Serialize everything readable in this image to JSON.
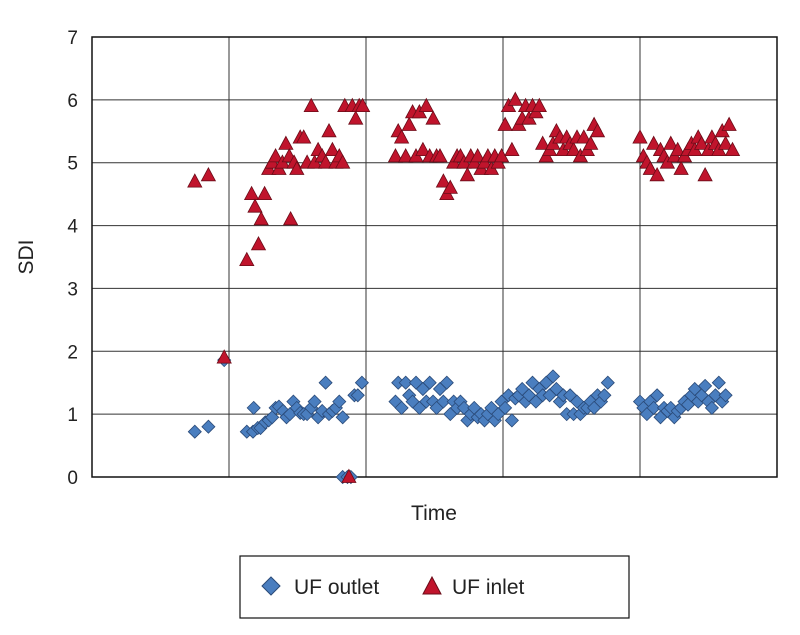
{
  "chart_data": {
    "type": "scatter",
    "xlabel": "Time",
    "ylabel": "SDI",
    "xlim": [
      0,
      100
    ],
    "ylim": [
      0,
      7
    ],
    "yticks": [
      "0",
      "1",
      "2",
      "3",
      "4",
      "5",
      "6",
      "7"
    ],
    "x_gridlines": [
      20,
      40,
      60,
      80
    ],
    "grid": true,
    "legend_position": "bottom",
    "series": [
      {
        "name": "UF outlet",
        "marker": "diamond",
        "color": "#4a7ebf",
        "points": [
          [
            15.0,
            0.72
          ],
          [
            17.0,
            0.8
          ],
          [
            19.3,
            1.86
          ],
          [
            22.6,
            0.72
          ],
          [
            23.5,
            0.72
          ],
          [
            23.6,
            1.1
          ],
          [
            24.2,
            0.78
          ],
          [
            24.6,
            0.78
          ],
          [
            25.3,
            0.87
          ],
          [
            25.8,
            0.9
          ],
          [
            26.3,
            0.95
          ],
          [
            26.8,
            1.1
          ],
          [
            27.3,
            1.12
          ],
          [
            27.9,
            1.05
          ],
          [
            28.4,
            0.95
          ],
          [
            28.9,
            1.0
          ],
          [
            29.4,
            1.2
          ],
          [
            29.9,
            1.1
          ],
          [
            30.4,
            1.02
          ],
          [
            30.9,
            1.0
          ],
          [
            31.4,
            1.0
          ],
          [
            32.0,
            1.1
          ],
          [
            32.5,
            1.2
          ],
          [
            33.0,
            0.95
          ],
          [
            33.6,
            1.05
          ],
          [
            34.1,
            1.5
          ],
          [
            34.6,
            1.0
          ],
          [
            35.1,
            1.05
          ],
          [
            35.6,
            1.1
          ],
          [
            36.1,
            1.2
          ],
          [
            36.6,
            0.95
          ],
          [
            36.6,
            0.0
          ],
          [
            37.3,
            0.0
          ],
          [
            37.8,
            0.0
          ],
          [
            38.3,
            1.3
          ],
          [
            38.8,
            1.3
          ],
          [
            39.4,
            1.5
          ],
          [
            44.3,
            1.2
          ],
          [
            44.7,
            1.5
          ],
          [
            45.2,
            1.1
          ],
          [
            45.8,
            1.5
          ],
          [
            46.3,
            1.3
          ],
          [
            46.8,
            1.2
          ],
          [
            47.3,
            1.5
          ],
          [
            47.8,
            1.1
          ],
          [
            48.3,
            1.4
          ],
          [
            48.8,
            1.2
          ],
          [
            49.3,
            1.5
          ],
          [
            49.8,
            1.2
          ],
          [
            50.3,
            1.1
          ],
          [
            50.8,
            1.4
          ],
          [
            51.3,
            1.2
          ],
          [
            51.8,
            1.5
          ],
          [
            52.3,
            1.0
          ],
          [
            52.8,
            1.2
          ],
          [
            53.3,
            1.1
          ],
          [
            53.8,
            1.2
          ],
          [
            54.3,
            1.1
          ],
          [
            54.8,
            0.9
          ],
          [
            55.3,
            1.0
          ],
          [
            55.8,
            1.1
          ],
          [
            56.3,
            0.95
          ],
          [
            56.8,
            1.0
          ],
          [
            57.3,
            0.9
          ],
          [
            57.8,
            1.0
          ],
          [
            58.3,
            1.1
          ],
          [
            58.8,
            0.9
          ],
          [
            59.3,
            1.0
          ],
          [
            59.8,
            1.2
          ],
          [
            60.3,
            1.1
          ],
          [
            60.8,
            1.3
          ],
          [
            61.3,
            0.9
          ],
          [
            61.8,
            1.25
          ],
          [
            62.3,
            1.3
          ],
          [
            62.8,
            1.4
          ],
          [
            63.3,
            1.2
          ],
          [
            63.8,
            1.3
          ],
          [
            64.3,
            1.5
          ],
          [
            64.8,
            1.2
          ],
          [
            65.3,
            1.4
          ],
          [
            65.8,
            1.3
          ],
          [
            66.3,
            1.5
          ],
          [
            66.8,
            1.3
          ],
          [
            67.3,
            1.6
          ],
          [
            67.8,
            1.4
          ],
          [
            68.3,
            1.2
          ],
          [
            68.8,
            1.3
          ],
          [
            69.3,
            1.0
          ],
          [
            69.8,
            1.3
          ],
          [
            70.3,
            1.0
          ],
          [
            70.8,
            1.2
          ],
          [
            71.3,
            1.0
          ],
          [
            71.8,
            1.1
          ],
          [
            72.3,
            1.1
          ],
          [
            72.8,
            1.2
          ],
          [
            73.3,
            1.1
          ],
          [
            73.8,
            1.3
          ],
          [
            74.3,
            1.2
          ],
          [
            74.8,
            1.3
          ],
          [
            75.3,
            1.5
          ],
          [
            80.0,
            1.2
          ],
          [
            80.5,
            1.1
          ],
          [
            81.0,
            1.0
          ],
          [
            81.5,
            1.2
          ],
          [
            82.0,
            1.1
          ],
          [
            82.5,
            1.3
          ],
          [
            83.0,
            0.95
          ],
          [
            83.5,
            1.1
          ],
          [
            84.0,
            1.05
          ],
          [
            84.5,
            1.1
          ],
          [
            85.0,
            0.95
          ],
          [
            85.5,
            1.05
          ],
          [
            86.0,
            1.1
          ],
          [
            86.5,
            1.2
          ],
          [
            87.0,
            1.15
          ],
          [
            87.5,
            1.3
          ],
          [
            88.0,
            1.4
          ],
          [
            88.5,
            1.2
          ],
          [
            89.0,
            1.3
          ],
          [
            89.5,
            1.45
          ],
          [
            90.0,
            1.2
          ],
          [
            90.5,
            1.1
          ],
          [
            91.0,
            1.3
          ],
          [
            91.5,
            1.5
          ],
          [
            92.0,
            1.2
          ],
          [
            92.5,
            1.3
          ]
        ]
      },
      {
        "name": "UF inlet",
        "marker": "triangle",
        "color": "#c0142c",
        "points": [
          [
            15.0,
            4.7
          ],
          [
            17.0,
            4.8
          ],
          [
            19.3,
            1.9
          ],
          [
            22.6,
            3.45
          ],
          [
            23.3,
            4.5
          ],
          [
            23.8,
            4.3
          ],
          [
            24.3,
            3.7
          ],
          [
            24.7,
            4.1
          ],
          [
            25.2,
            4.5
          ],
          [
            25.8,
            4.9
          ],
          [
            26.3,
            5.0
          ],
          [
            26.8,
            5.1
          ],
          [
            27.3,
            4.9
          ],
          [
            27.8,
            5.0
          ],
          [
            28.3,
            5.3
          ],
          [
            28.8,
            5.1
          ],
          [
            29.0,
            4.1
          ],
          [
            29.5,
            5.0
          ],
          [
            29.9,
            4.9
          ],
          [
            30.4,
            5.4
          ],
          [
            30.9,
            5.4
          ],
          [
            31.4,
            5.0
          ],
          [
            32.0,
            5.9
          ],
          [
            32.5,
            5.0
          ],
          [
            33.0,
            5.2
          ],
          [
            33.6,
            5.1
          ],
          [
            34.1,
            5.0
          ],
          [
            34.6,
            5.5
          ],
          [
            35.1,
            5.2
          ],
          [
            35.6,
            5.0
          ],
          [
            36.1,
            5.1
          ],
          [
            36.6,
            5.0
          ],
          [
            36.9,
            5.9
          ],
          [
            37.5,
            0.0
          ],
          [
            38.0,
            5.9
          ],
          [
            38.5,
            5.7
          ],
          [
            39.0,
            5.9
          ],
          [
            39.5,
            5.9
          ],
          [
            44.3,
            5.1
          ],
          [
            44.7,
            5.5
          ],
          [
            45.2,
            5.4
          ],
          [
            45.8,
            5.1
          ],
          [
            46.3,
            5.6
          ],
          [
            46.8,
            5.8
          ],
          [
            47.3,
            5.1
          ],
          [
            47.8,
            5.8
          ],
          [
            48.3,
            5.2
          ],
          [
            48.8,
            5.9
          ],
          [
            49.3,
            5.1
          ],
          [
            49.8,
            5.7
          ],
          [
            50.3,
            5.1
          ],
          [
            50.8,
            5.1
          ],
          [
            51.3,
            4.7
          ],
          [
            51.8,
            4.5
          ],
          [
            52.3,
            4.6
          ],
          [
            52.8,
            5.0
          ],
          [
            53.3,
            5.1
          ],
          [
            53.8,
            5.1
          ],
          [
            54.3,
            5.0
          ],
          [
            54.8,
            4.8
          ],
          [
            55.3,
            5.1
          ],
          [
            55.8,
            5.0
          ],
          [
            56.3,
            5.1
          ],
          [
            56.8,
            4.9
          ],
          [
            57.3,
            5.0
          ],
          [
            57.8,
            5.1
          ],
          [
            58.3,
            4.9
          ],
          [
            58.8,
            5.1
          ],
          [
            59.3,
            5.0
          ],
          [
            59.8,
            5.1
          ],
          [
            60.3,
            5.6
          ],
          [
            60.8,
            5.9
          ],
          [
            61.3,
            5.2
          ],
          [
            61.8,
            6.0
          ],
          [
            62.3,
            5.6
          ],
          [
            62.8,
            5.7
          ],
          [
            63.3,
            5.9
          ],
          [
            63.8,
            5.7
          ],
          [
            64.3,
            5.9
          ],
          [
            64.8,
            5.8
          ],
          [
            65.3,
            5.9
          ],
          [
            65.8,
            5.3
          ],
          [
            66.3,
            5.1
          ],
          [
            66.8,
            5.2
          ],
          [
            67.3,
            5.3
          ],
          [
            67.8,
            5.5
          ],
          [
            68.3,
            5.4
          ],
          [
            68.8,
            5.2
          ],
          [
            69.3,
            5.4
          ],
          [
            69.8,
            5.3
          ],
          [
            70.3,
            5.2
          ],
          [
            70.8,
            5.4
          ],
          [
            71.3,
            5.1
          ],
          [
            71.8,
            5.4
          ],
          [
            72.3,
            5.2
          ],
          [
            72.8,
            5.3
          ],
          [
            73.3,
            5.6
          ],
          [
            73.8,
            5.5
          ],
          [
            80.0,
            5.4
          ],
          [
            80.5,
            5.1
          ],
          [
            81.0,
            5.0
          ],
          [
            81.5,
            4.9
          ],
          [
            82.0,
            5.3
          ],
          [
            82.5,
            4.8
          ],
          [
            83.0,
            5.2
          ],
          [
            83.5,
            5.1
          ],
          [
            84.0,
            5.0
          ],
          [
            84.5,
            5.3
          ],
          [
            85.0,
            5.1
          ],
          [
            85.5,
            5.2
          ],
          [
            86.0,
            4.9
          ],
          [
            86.5,
            5.1
          ],
          [
            87.0,
            5.2
          ],
          [
            87.5,
            5.3
          ],
          [
            88.0,
            5.2
          ],
          [
            88.5,
            5.4
          ],
          [
            89.0,
            5.3
          ],
          [
            89.5,
            4.8
          ],
          [
            90.0,
            5.2
          ],
          [
            90.5,
            5.4
          ],
          [
            91.0,
            5.3
          ],
          [
            91.5,
            5.2
          ],
          [
            92.0,
            5.5
          ],
          [
            92.5,
            5.3
          ],
          [
            93.0,
            5.6
          ],
          [
            93.5,
            5.2
          ]
        ]
      }
    ]
  }
}
